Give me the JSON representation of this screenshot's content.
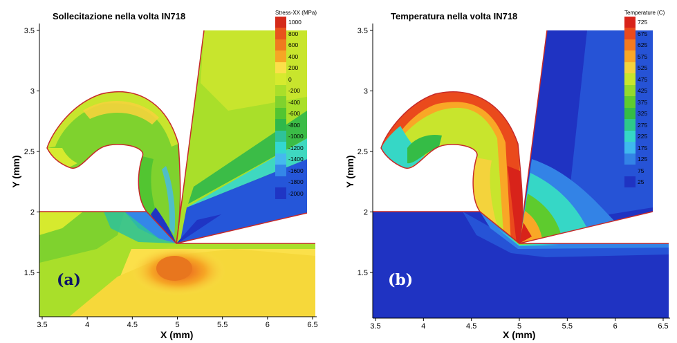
{
  "chart_data": [
    {
      "type": "contour",
      "title": "Sollecitazione nella volta IN718",
      "panel_label": "(a)",
      "xlabel": "X (mm)",
      "ylabel": "Y (mm)",
      "xlim": [
        3.5,
        6.6
      ],
      "ylim": [
        1.15,
        3.55
      ],
      "xticks": [
        "3.5",
        "4",
        "4.5",
        "5",
        "5.5",
        "6",
        "6.5"
      ],
      "yticks": [
        "1.5",
        "2",
        "2.5",
        "3",
        "3.5"
      ],
      "colorbar": {
        "title": "Stress-XX (MPa)",
        "levels": [
          "1000",
          "800",
          "600",
          "400",
          "200",
          "0",
          "-200",
          "-400",
          "-600",
          "-800",
          "-1000",
          "-1200",
          "-1400",
          "-1600",
          "-1800",
          "-2000"
        ],
        "colors": [
          "#d42a1a",
          "#e8531c",
          "#f07a1f",
          "#f6a625",
          "#fbe04a",
          "#d6ea2e",
          "#a9df2a",
          "#7fd22e",
          "#52c531",
          "#2fb84a",
          "#2ec29a",
          "#33d7d0",
          "#45b9ee",
          "#3487e8",
          "#2556d9",
          "#1f35c4"
        ]
      }
    },
    {
      "type": "contour",
      "title": "Temperatura nella volta IN718",
      "panel_label": "(b)",
      "xlabel": "X (mm)",
      "ylabel": "Y (mm)",
      "xlim": [
        3.5,
        6.6
      ],
      "ylim": [
        1.15,
        3.55
      ],
      "xticks": [
        "3.5",
        "4",
        "4.5",
        "5",
        "5.5",
        "6",
        "6.5"
      ],
      "yticks": [
        "1.5",
        "2",
        "2.5",
        "3",
        "3.5"
      ],
      "colorbar": {
        "title": "Temperature (C)",
        "levels": [
          "725",
          "675",
          "625",
          "575",
          "525",
          "475",
          "425",
          "375",
          "325",
          "275",
          "225",
          "175",
          "125",
          "75",
          "25"
        ],
        "colors": [
          "#d8231a",
          "#ea4a1c",
          "#f47a1f",
          "#f9a726",
          "#f4d33c",
          "#c8e52d",
          "#93d92c",
          "#5ecb2e",
          "#35bc46",
          "#2ec88a",
          "#36d7c6",
          "#3fb9ee",
          "#3383e6",
          "#2653d6",
          "#1f33c2"
        ]
      }
    }
  ]
}
